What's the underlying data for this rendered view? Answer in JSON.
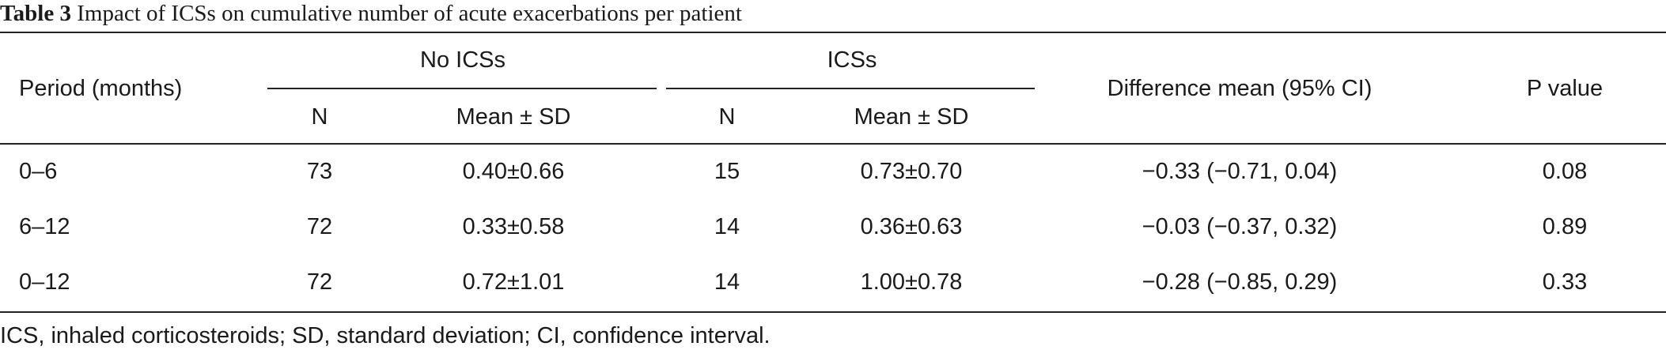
{
  "table": {
    "caption_label": "Table 3",
    "caption_text": "Impact of ICSs on cumulative number of acute exacerbations per patient",
    "headers": {
      "period": "Period (months)",
      "group_no_ics": "No ICSs",
      "group_ics": "ICSs",
      "n": "N",
      "mean_sd": "Mean ± SD",
      "difference": "Difference mean (95% CI)",
      "p_value": "P value"
    },
    "rows": [
      {
        "period": "0–6",
        "no_ics_n": "73",
        "no_ics_mean": "0.40±0.66",
        "ics_n": "15",
        "ics_mean": "0.73±0.70",
        "difference": "−0.33 (−0.71, 0.04)",
        "p_value": "0.08"
      },
      {
        "period": "6–12",
        "no_ics_n": "72",
        "no_ics_mean": "0.33±0.58",
        "ics_n": "14",
        "ics_mean": "0.36±0.63",
        "difference": "−0.03 (−0.37, 0.32)",
        "p_value": "0.89"
      },
      {
        "period": "0–12",
        "no_ics_n": "72",
        "no_ics_mean": "0.72±1.01",
        "ics_n": "14",
        "ics_mean": "1.00±0.78",
        "difference": "−0.28 (−0.85, 0.29)",
        "p_value": "0.33"
      }
    ],
    "footnote": "ICS, inhaled corticosteroids; SD, standard deviation; CI, confidence interval."
  }
}
